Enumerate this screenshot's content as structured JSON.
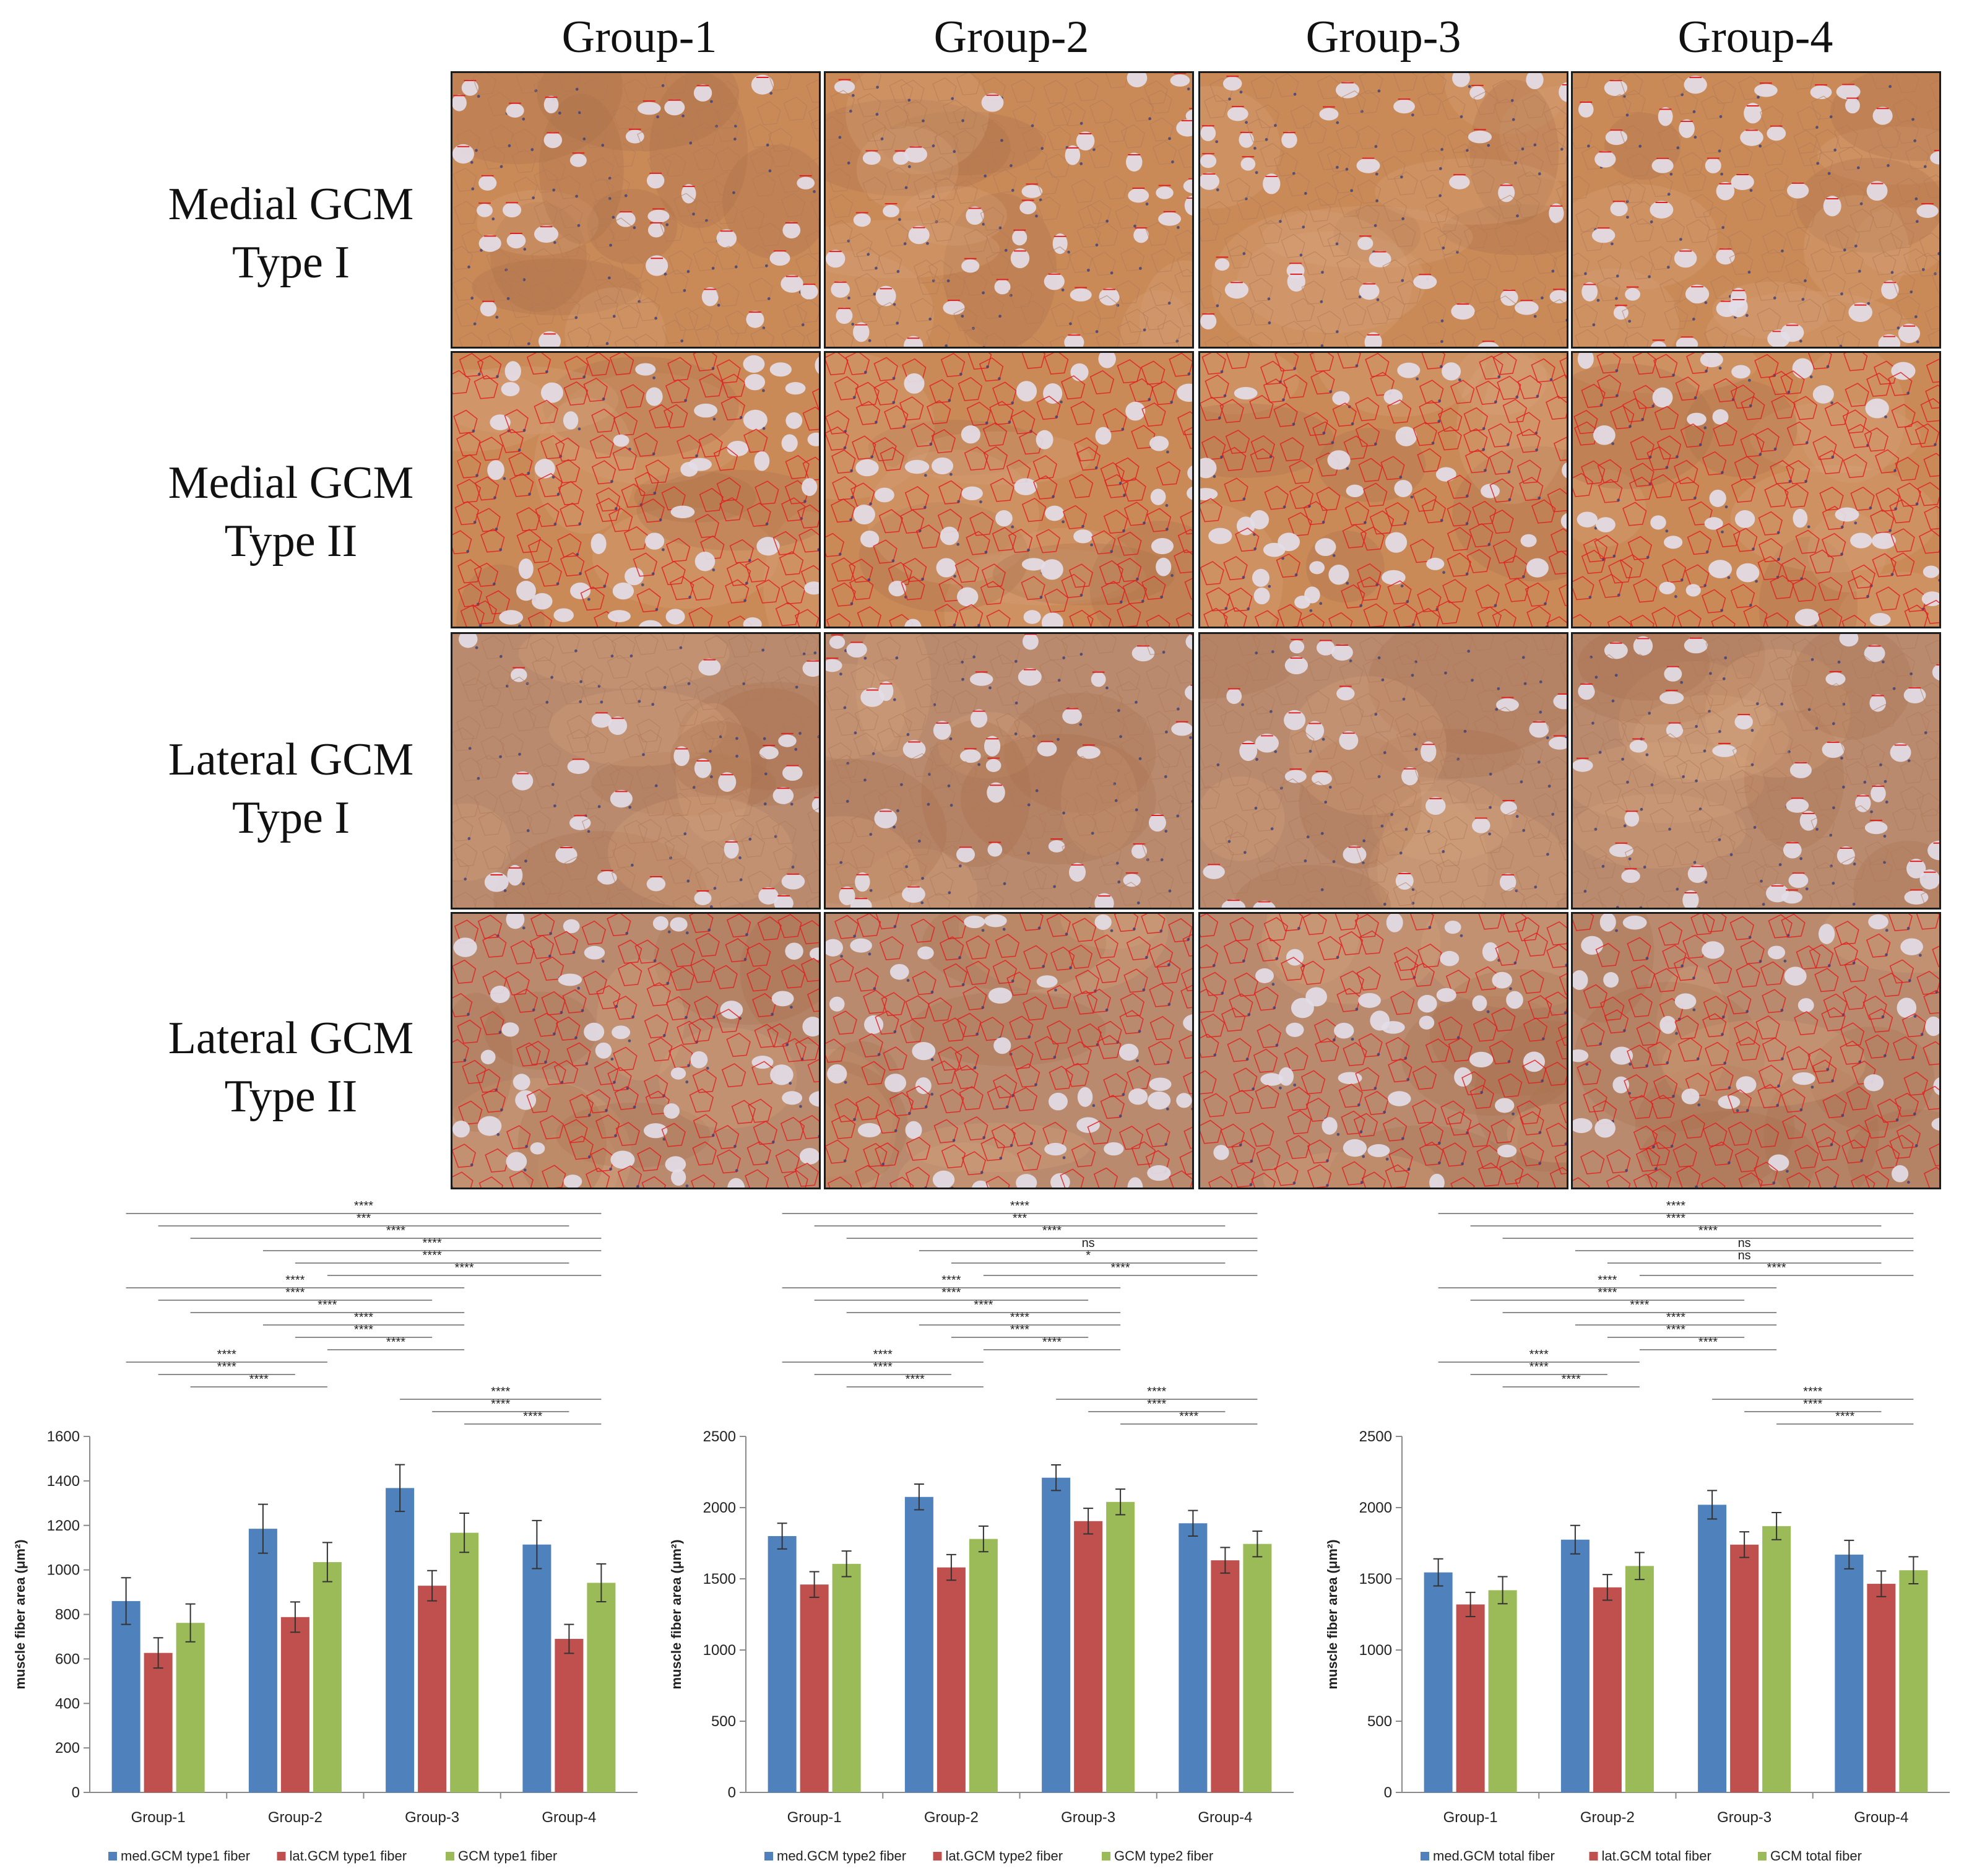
{
  "figure": {
    "column_labels": [
      "Group-1",
      "Group-2",
      "Group-3",
      "Group-4"
    ],
    "row_labels": [
      {
        "line1": "Medial GCM",
        "line2": "Type I"
      },
      {
        "line1": "Medial GCM",
        "line2": "Type II"
      },
      {
        "line1": "Lateral GCM",
        "line2": "Type I"
      },
      {
        "line1": "Lateral GCM",
        "line2": "Type II"
      }
    ],
    "panel_image": "atpase-stained-muscle-section",
    "colors": {
      "blue": "#4f81bd",
      "red": "#c0504d",
      "green": "#9bbb59",
      "tissue": "#c98a58",
      "type1_fiber": "#e3dde7",
      "outline": "#e02020"
    }
  },
  "chart_data": [
    {
      "type": "bar",
      "ylabel": "muscle fiber area (μm²)",
      "ylim": [
        0,
        1600
      ],
      "yticks": [
        0,
        200,
        400,
        600,
        800,
        1000,
        1200,
        1400,
        1600
      ],
      "categories": [
        "Group-1",
        "Group-2",
        "Group-3",
        "Group-4"
      ],
      "series": [
        {
          "name": "med.GCM type1 fiber",
          "values": [
            860,
            1185,
            1368,
            1114
          ],
          "errors": [
            105,
            110,
            105,
            108
          ],
          "color": "#4f81bd"
        },
        {
          "name": "lat.GCM type1 fiber",
          "values": [
            627,
            788,
            929,
            690
          ],
          "errors": [
            68,
            68,
            68,
            65
          ],
          "color": "#c0504d"
        },
        {
          "name": "GCM type1 fiber",
          "values": [
            762,
            1035,
            1167,
            942
          ],
          "errors": [
            85,
            88,
            88,
            85
          ],
          "color": "#9bbb59"
        }
      ],
      "legend": "bottom",
      "significance": [
        {
          "label": "****",
          "from": "Group-1 med",
          "to": "Group-4 GCM"
        },
        {
          "label": "***",
          "from": "Group-1 lat",
          "to": "Group-4 lat"
        },
        {
          "label": "****",
          "from": "Group-1 GCM",
          "to": "Group-4 GCM"
        },
        {
          "label": "****",
          "from": "Group-2 med",
          "to": "Group-4 GCM"
        },
        {
          "label": "****",
          "from": "Group-2 lat",
          "to": "Group-4 lat"
        },
        {
          "label": "****",
          "from": "Group-2 GCM",
          "to": "Group-4 GCM"
        },
        {
          "label": "****",
          "from": "Group-1 med",
          "to": "Group-3 GCM"
        },
        {
          "label": "****",
          "from": "Group-1 lat",
          "to": "Group-3 lat"
        },
        {
          "label": "****",
          "from": "Group-1 GCM",
          "to": "Group-3 GCM"
        },
        {
          "label": "****",
          "from": "Group-2 med",
          "to": "Group-3 GCM"
        },
        {
          "label": "****",
          "from": "Group-2 lat",
          "to": "Group-3 lat"
        },
        {
          "label": "****",
          "from": "Group-2 GCM",
          "to": "Group-3 GCM"
        },
        {
          "label": "****",
          "from": "Group-1 med",
          "to": "Group-2 GCM"
        },
        {
          "label": "****",
          "from": "Group-1 lat",
          "to": "Group-2 lat"
        },
        {
          "label": "****",
          "from": "Group-1 GCM",
          "to": "Group-2 GCM"
        },
        {
          "label": "****",
          "from": "Group-3 med",
          "to": "Group-4 GCM"
        },
        {
          "label": "****",
          "from": "Group-3 lat",
          "to": "Group-4 lat"
        },
        {
          "label": "****",
          "from": "Group-3 GCM",
          "to": "Group-4 GCM"
        }
      ]
    },
    {
      "type": "bar",
      "ylabel": "muscle fiber area (μm²)",
      "ylim": [
        0,
        2500
      ],
      "yticks": [
        0,
        500,
        1000,
        1500,
        2000,
        2500
      ],
      "categories": [
        "Group-1",
        "Group-2",
        "Group-3",
        "Group-4"
      ],
      "series": [
        {
          "name": "med.GCM type2 fiber",
          "values": [
            1800,
            2075,
            2210,
            1890
          ],
          "errors": [
            90,
            90,
            90,
            90
          ],
          "color": "#4f81bd"
        },
        {
          "name": "lat.GCM type2 fiber",
          "values": [
            1460,
            1580,
            1905,
            1630
          ],
          "errors": [
            90,
            90,
            90,
            90
          ],
          "color": "#c0504d"
        },
        {
          "name": "GCM type2 fiber",
          "values": [
            1605,
            1780,
            2040,
            1745
          ],
          "errors": [
            90,
            90,
            90,
            90
          ],
          "color": "#9bbb59"
        }
      ],
      "legend": "bottom",
      "significance": [
        {
          "label": "****",
          "from": "Group-1 med",
          "to": "Group-4 GCM"
        },
        {
          "label": "***",
          "from": "Group-1 lat",
          "to": "Group-4 lat"
        },
        {
          "label": "****",
          "from": "Group-1 GCM",
          "to": "Group-4 GCM"
        },
        {
          "label": "ns",
          "from": "Group-2 med",
          "to": "Group-4 GCM"
        },
        {
          "label": "*",
          "from": "Group-2 lat",
          "to": "Group-4 lat"
        },
        {
          "label": "****",
          "from": "Group-2 GCM",
          "to": "Group-4 GCM"
        },
        {
          "label": "****",
          "from": "Group-1 med",
          "to": "Group-3 GCM"
        },
        {
          "label": "****",
          "from": "Group-1 lat",
          "to": "Group-3 lat"
        },
        {
          "label": "****",
          "from": "Group-1 GCM",
          "to": "Group-3 GCM"
        },
        {
          "label": "****",
          "from": "Group-2 med",
          "to": "Group-3 GCM"
        },
        {
          "label": "****",
          "from": "Group-2 lat",
          "to": "Group-3 lat"
        },
        {
          "label": "****",
          "from": "Group-2 GCM",
          "to": "Group-3 GCM"
        },
        {
          "label": "****",
          "from": "Group-1 med",
          "to": "Group-2 GCM"
        },
        {
          "label": "****",
          "from": "Group-1 lat",
          "to": "Group-2 lat"
        },
        {
          "label": "****",
          "from": "Group-1 GCM",
          "to": "Group-2 GCM"
        },
        {
          "label": "****",
          "from": "Group-3 med",
          "to": "Group-4 GCM"
        },
        {
          "label": "****",
          "from": "Group-3 lat",
          "to": "Group-4 lat"
        },
        {
          "label": "****",
          "from": "Group-3 GCM",
          "to": "Group-4 GCM"
        }
      ]
    },
    {
      "type": "bar",
      "ylabel": "muscle fiber area (μm²)",
      "ylim": [
        0,
        2500
      ],
      "yticks": [
        0,
        500,
        1000,
        1500,
        2000,
        2500
      ],
      "categories": [
        "Group-1",
        "Group-2",
        "Group-3",
        "Group-4"
      ],
      "series": [
        {
          "name": "med.GCM total fiber",
          "values": [
            1545,
            1775,
            2020,
            1670
          ],
          "errors": [
            95,
            100,
            100,
            100
          ],
          "color": "#4f81bd"
        },
        {
          "name": "lat.GCM total fiber",
          "values": [
            1320,
            1440,
            1740,
            1465
          ],
          "errors": [
            85,
            90,
            90,
            90
          ],
          "color": "#c0504d"
        },
        {
          "name": "GCM total fiber",
          "values": [
            1420,
            1590,
            1870,
            1560
          ],
          "errors": [
            95,
            95,
            95,
            95
          ],
          "color": "#9bbb59"
        }
      ],
      "legend": "bottom",
      "significance": [
        {
          "label": "****",
          "from": "Group-1 med",
          "to": "Group-4 GCM"
        },
        {
          "label": "****",
          "from": "Group-1 lat",
          "to": "Group-4 lat"
        },
        {
          "label": "****",
          "from": "Group-1 GCM",
          "to": "Group-4 GCM"
        },
        {
          "label": "ns",
          "from": "Group-2 med",
          "to": "Group-4 GCM"
        },
        {
          "label": "ns",
          "from": "Group-2 lat",
          "to": "Group-4 lat"
        },
        {
          "label": "****",
          "from": "Group-2 GCM",
          "to": "Group-4 GCM"
        },
        {
          "label": "****",
          "from": "Group-1 med",
          "to": "Group-3 GCM"
        },
        {
          "label": "****",
          "from": "Group-1 lat",
          "to": "Group-3 lat"
        },
        {
          "label": "****",
          "from": "Group-1 GCM",
          "to": "Group-3 GCM"
        },
        {
          "label": "****",
          "from": "Group-2 med",
          "to": "Group-3 GCM"
        },
        {
          "label": "****",
          "from": "Group-2 lat",
          "to": "Group-3 lat"
        },
        {
          "label": "****",
          "from": "Group-2 GCM",
          "to": "Group-3 GCM"
        },
        {
          "label": "****",
          "from": "Group-1 med",
          "to": "Group-2 GCM"
        },
        {
          "label": "****",
          "from": "Group-1 lat",
          "to": "Group-2 lat"
        },
        {
          "label": "****",
          "from": "Group-1 GCM",
          "to": "Group-2 GCM"
        },
        {
          "label": "****",
          "from": "Group-3 med",
          "to": "Group-4 GCM"
        },
        {
          "label": "****",
          "from": "Group-3 lat",
          "to": "Group-4 lat"
        },
        {
          "label": "****",
          "from": "Group-3 GCM",
          "to": "Group-4 GCM"
        }
      ]
    }
  ]
}
